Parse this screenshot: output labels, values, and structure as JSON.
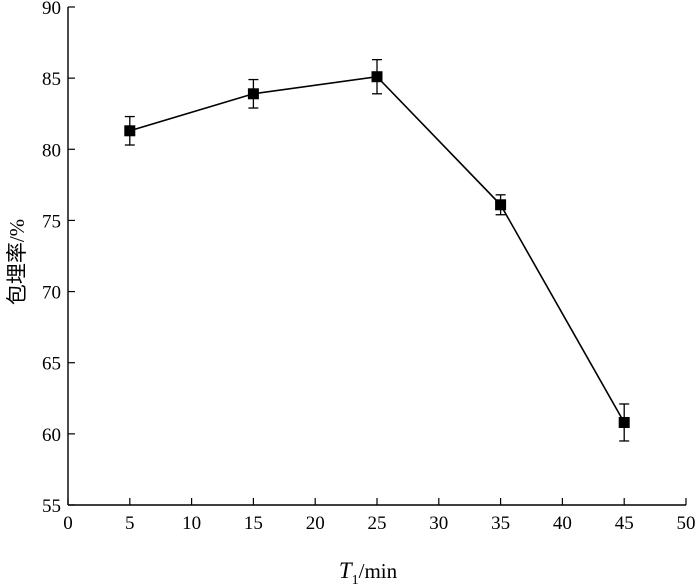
{
  "chart_data": {
    "type": "line",
    "xlabel": {
      "main": "T",
      "sub": "1",
      "unit": "/min"
    },
    "ylabel": "包埋率/%",
    "xlim": [
      0,
      50
    ],
    "ylim": [
      55,
      90
    ],
    "xticks": [
      0,
      5,
      10,
      15,
      20,
      25,
      30,
      35,
      40,
      45,
      50
    ],
    "yticks": [
      55,
      60,
      65,
      70,
      75,
      80,
      85,
      90
    ],
    "grid": false,
    "legend": "none",
    "series": [
      {
        "marker": "square",
        "color": "#000000",
        "x": [
          5,
          15,
          25,
          35,
          45
        ],
        "y": [
          81.3,
          83.9,
          85.1,
          76.1,
          60.8
        ],
        "error": [
          1.0,
          1.0,
          1.2,
          0.7,
          1.3
        ]
      }
    ]
  }
}
